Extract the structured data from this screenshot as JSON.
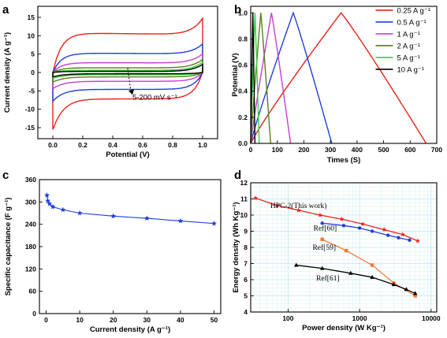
{
  "colors": {
    "red": "#e8221b",
    "blue": "#1e3fdc",
    "magenta": "#c43fd1",
    "olive": "#5b7d1e",
    "green": "#35d13a",
    "black": "#000000",
    "orange": "#f07a38",
    "grid": "#9ad9e0"
  },
  "chart_data": [
    {
      "id": "a",
      "panel_letter": "a",
      "type": "line",
      "subtype": "cyclic voltammetry",
      "xlabel": "Potential (V)",
      "ylabel": "Current density (A g⁻¹)",
      "xlim": [
        -0.1,
        1.1
      ],
      "ylim": [
        -18,
        18
      ],
      "xticks": [
        "0.0",
        "0.2",
        "0.4",
        "0.6",
        "0.8",
        "1.0"
      ],
      "yticks": [
        "-15",
        "-10",
        "-5",
        "0",
        "5",
        "10",
        "15"
      ],
      "annotation": "5-200 mV s⁻¹",
      "series": [
        {
          "color": "red",
          "upper": 10.8,
          "lower": -7.2,
          "end_high": 15.2,
          "start_low": -15.5
        },
        {
          "color": "blue",
          "upper": 5.3,
          "lower": -4.6,
          "end_high": 8.0,
          "start_low": -7.8
        },
        {
          "color": "magenta",
          "upper": 2.7,
          "lower": -2.4,
          "end_high": 5.2,
          "start_low": -4.4
        },
        {
          "color": "olive",
          "upper": 1.3,
          "lower": -1.2,
          "end_high": 3.6,
          "start_low": -2.6
        },
        {
          "color": "green",
          "upper": 0.6,
          "lower": -0.6,
          "end_high": 2.8,
          "start_low": -1.6
        },
        {
          "color": "black",
          "upper": 0.3,
          "lower": -0.35,
          "end_high": 2.2,
          "start_low": -1.2
        }
      ]
    },
    {
      "id": "b",
      "panel_letter": "b",
      "type": "line",
      "subtype": "galvanostatic charge-discharge",
      "xlabel": "Times (S)",
      "ylabel": "Potential (V)",
      "xlim": [
        0,
        700
      ],
      "ylim": [
        0,
        1.05
      ],
      "xticks": [
        "0",
        "100",
        "200",
        "300",
        "400",
        "500",
        "600",
        "700"
      ],
      "yticks": [
        "0.0",
        "0.2",
        "0.4",
        "0.6",
        "0.8",
        "1.0"
      ],
      "legend_position": "right",
      "series": [
        {
          "name": "0.25 A g⁻¹",
          "color": "red",
          "peak": 340,
          "end": 660
        },
        {
          "name": "0.5 A g⁻¹",
          "color": "blue",
          "peak": 160,
          "end": 305
        },
        {
          "name": "1 A g⁻¹",
          "color": "magenta",
          "peak": 78,
          "end": 150
        },
        {
          "name": "2 A g⁻¹",
          "color": "olive",
          "peak": 38,
          "end": 75
        },
        {
          "name": "5 A g⁻¹",
          "color": "green",
          "peak": 16,
          "end": 32
        },
        {
          "name": "10 A g⁻¹",
          "color": "black",
          "peak": 8,
          "end": 16
        }
      ]
    },
    {
      "id": "c",
      "panel_letter": "c",
      "type": "line",
      "xlabel": "Current density (A g⁻¹)",
      "ylabel": "Specific capacitance (F g⁻¹)",
      "xlim": [
        -2,
        52
      ],
      "ylim": [
        0,
        360
      ],
      "xticks": [
        "0",
        "10",
        "20",
        "30",
        "40",
        "50"
      ],
      "yticks": [
        "0",
        "60",
        "120",
        "180",
        "240",
        "300",
        "360"
      ],
      "series": [
        {
          "color": "blue",
          "x": [
            0.25,
            0.5,
            1,
            2,
            5,
            10,
            20,
            30,
            40,
            50
          ],
          "y": [
            318,
            303,
            295,
            287,
            279,
            270,
            262,
            256,
            249,
            242
          ]
        }
      ]
    },
    {
      "id": "d",
      "panel_letter": "d",
      "type": "line",
      "xscale": "log",
      "xlabel": "Power density (W Kg⁻¹)",
      "ylabel": "Energy density (Wh Kg⁻¹)",
      "xlim": [
        30,
        12000
      ],
      "ylim": [
        4,
        12
      ],
      "xticks": [
        "100",
        "1000",
        "10000"
      ],
      "yticks": [
        "4",
        "5",
        "6",
        "7",
        "8",
        "9",
        "10",
        "11",
        "12"
      ],
      "grid": true,
      "series": [
        {
          "name": "HPC-2(This work)",
          "color": "red",
          "x": [
            35,
            70,
            140,
            280,
            560,
            1100,
            2200,
            4000,
            6500
          ],
          "y": [
            11.05,
            10.6,
            10.3,
            10.0,
            9.75,
            9.45,
            9.1,
            8.8,
            8.4
          ]
        },
        {
          "name": "Ref[60]",
          "color": "blue",
          "x": [
            300,
            600,
            1000,
            1500,
            2500,
            3500,
            5000
          ],
          "y": [
            9.5,
            9.35,
            9.2,
            9.0,
            8.75,
            8.6,
            8.45
          ]
        },
        {
          "name": "Ref[59]",
          "color": "orange",
          "x": [
            300,
            650,
            1500,
            3000,
            6000
          ],
          "y": [
            8.5,
            7.8,
            6.9,
            5.8,
            5.0
          ]
        },
        {
          "name": "Ref[61]",
          "color": "black",
          "x": [
            130,
            300,
            750,
            1500,
            3000,
            4500,
            6000
          ],
          "y": [
            6.9,
            6.7,
            6.4,
            6.15,
            5.7,
            5.4,
            5.15
          ]
        }
      ]
    }
  ]
}
